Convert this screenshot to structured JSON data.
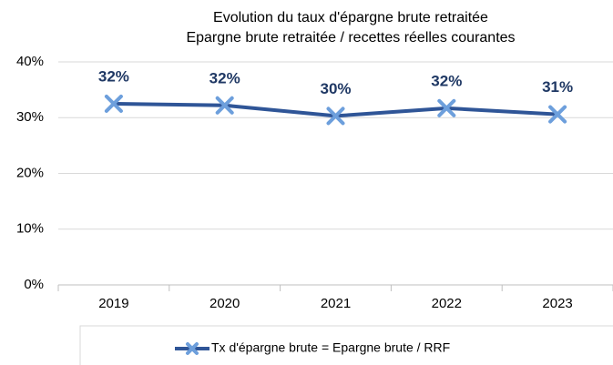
{
  "chart_data": {
    "type": "line",
    "title": "Evolution du taux d'épargne brute retraitée",
    "subtitle": "Epargne brute retraitée / recettes réelles courantes",
    "categories": [
      "2019",
      "2020",
      "2021",
      "2022",
      "2023"
    ],
    "series": [
      {
        "name": "Tx d'épargne brute = Epargne brute / RRF",
        "color": "#2f5597",
        "marker_color": "#6d9fdc",
        "values": [
          32.5,
          32.2,
          30.3,
          31.7,
          30.6
        ],
        "value_labels": [
          "32%",
          "32%",
          "30%",
          "32%",
          "31%"
        ]
      }
    ],
    "ylim": [
      0,
      40
    ],
    "yticks": [
      {
        "value": 0,
        "label": "0%"
      },
      {
        "value": 10,
        "label": "10%"
      },
      {
        "value": 20,
        "label": "20%"
      },
      {
        "value": 30,
        "label": "30%"
      },
      {
        "value": 40,
        "label": "40%"
      }
    ],
    "grid": true,
    "legend": "bottom"
  }
}
